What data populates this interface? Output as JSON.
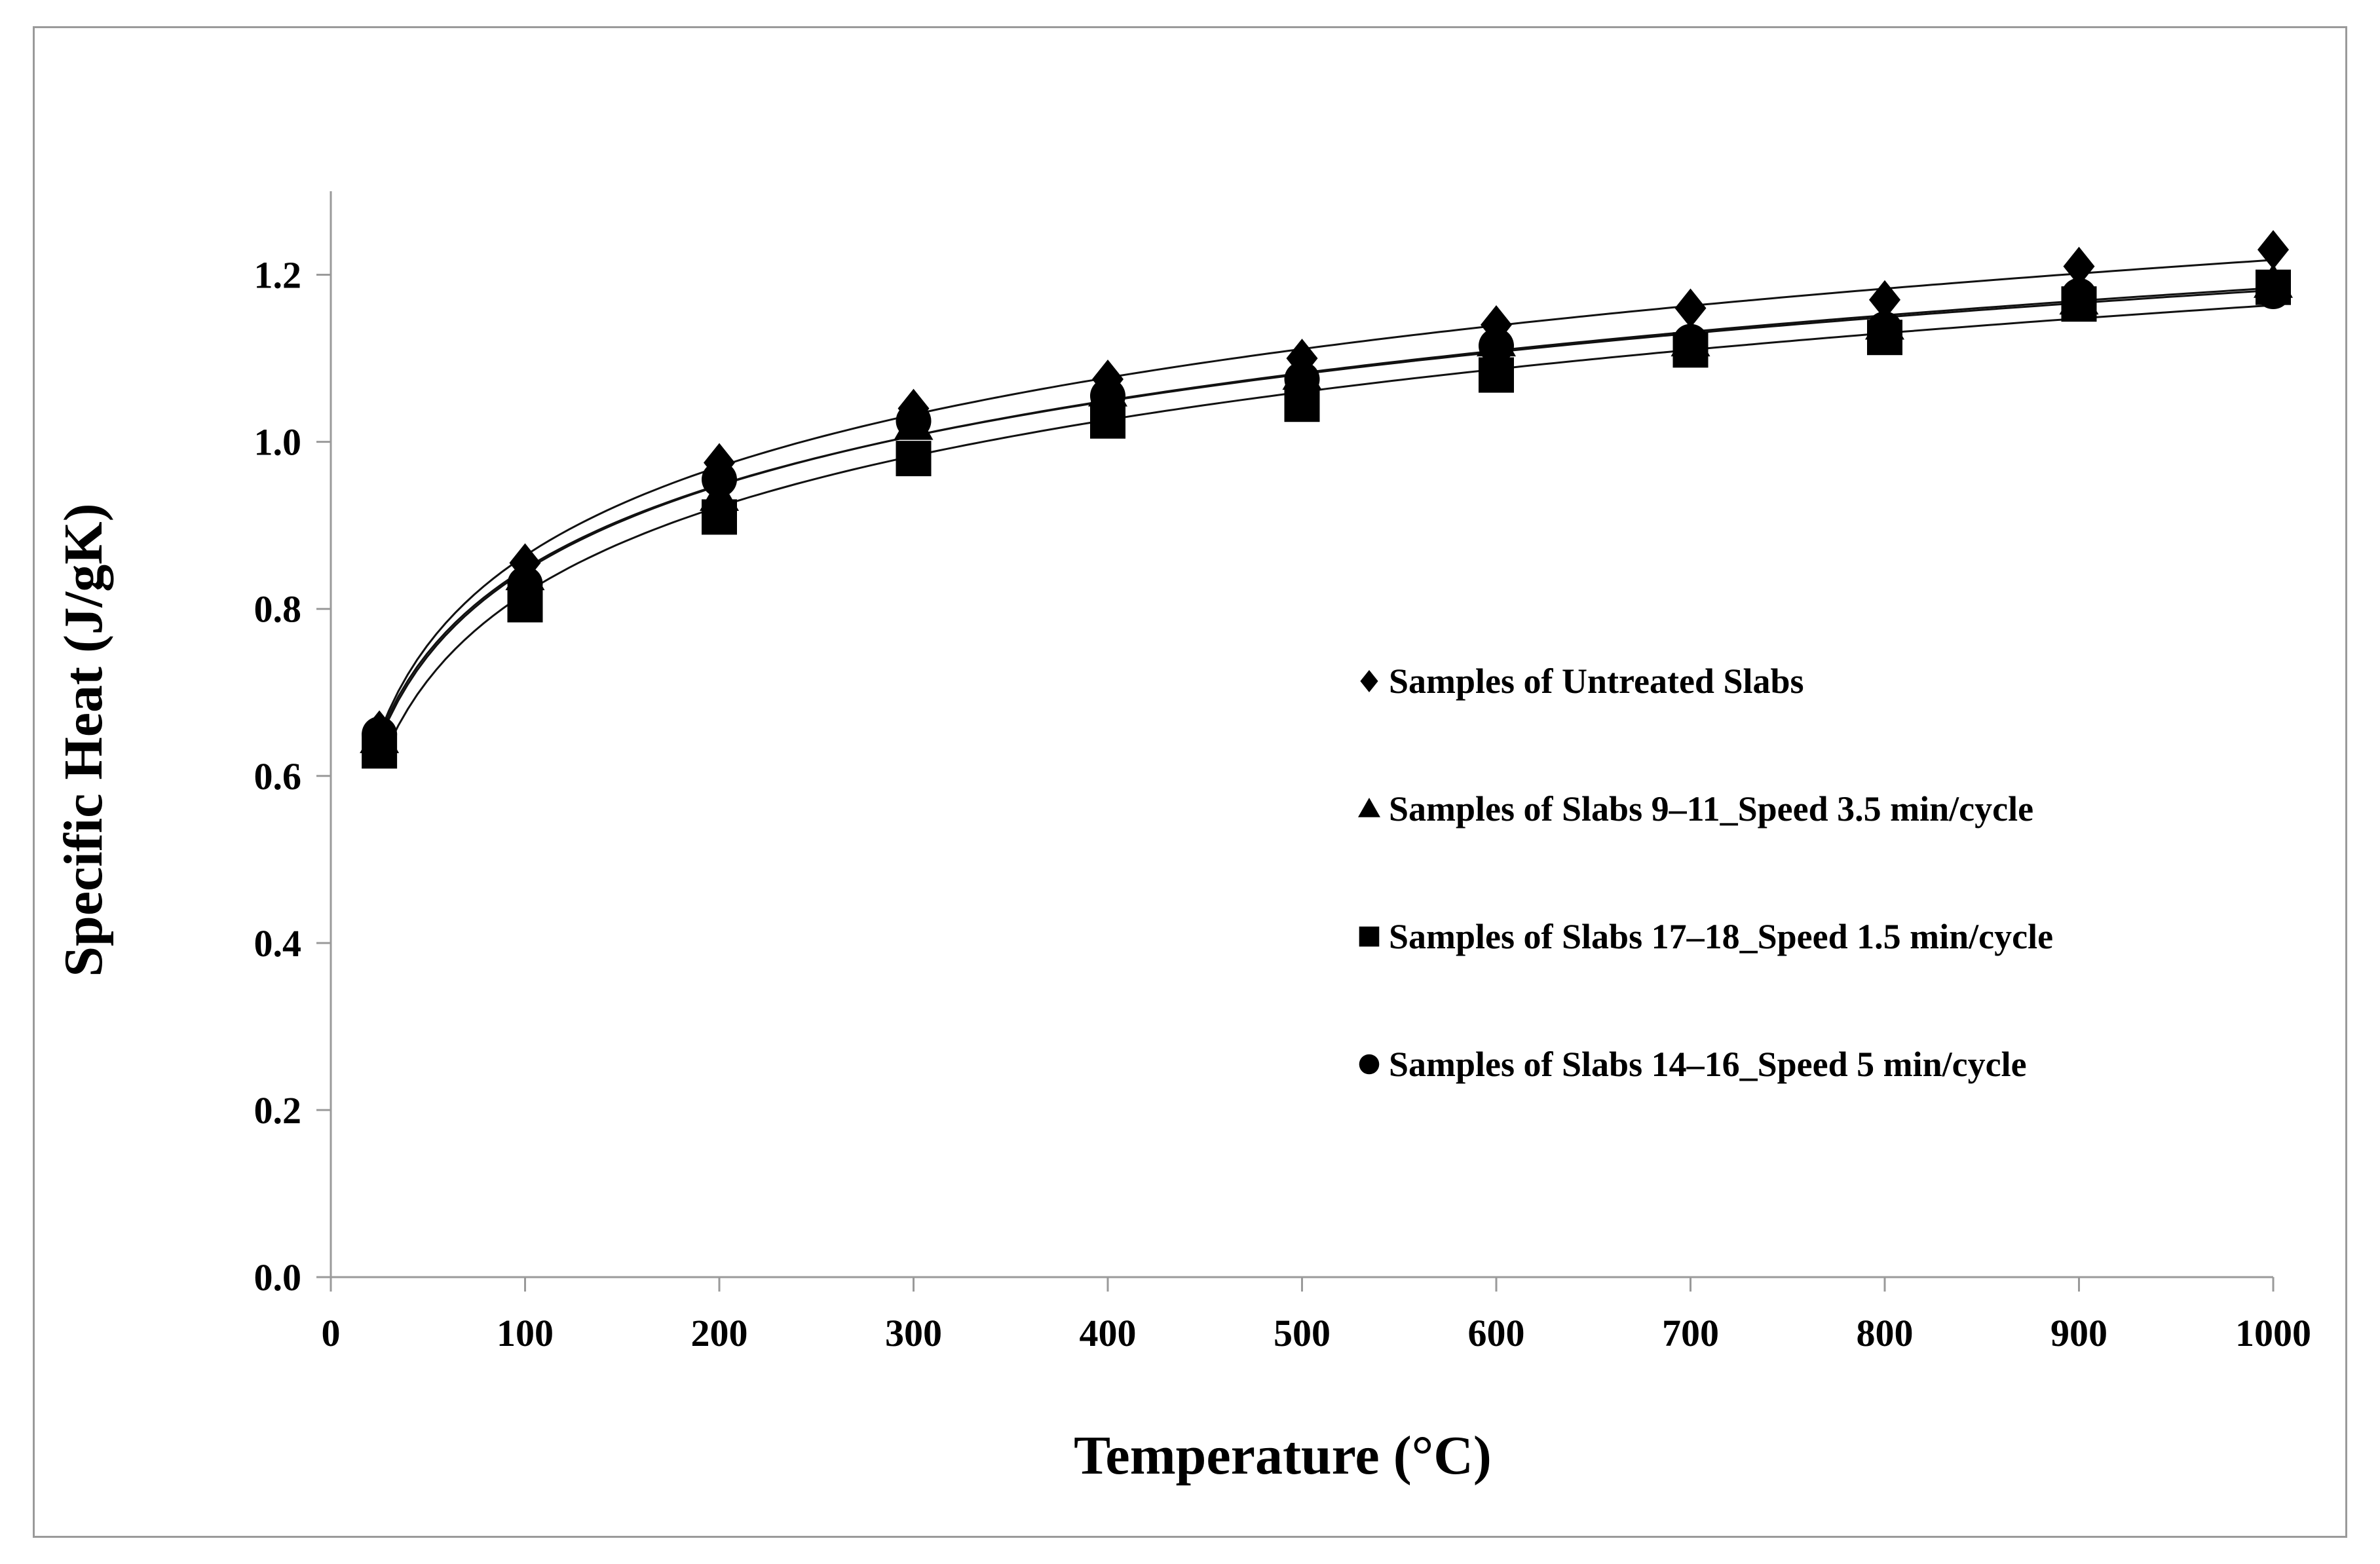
{
  "chart_data": {
    "type": "scatter",
    "title": "",
    "xlabel": "Temperature (°C)",
    "ylabel": "Specific Heat  (J/gK)",
    "xlim": [
      0,
      1000
    ],
    "ylim": [
      0,
      1.3
    ],
    "xticks": [
      "0",
      "100",
      "200",
      "300",
      "400",
      "500",
      "600",
      "700",
      "800",
      "900",
      "1000"
    ],
    "yticks": [
      "0.0",
      "0.2",
      "0.4",
      "0.6",
      "0.8",
      "1.0",
      "1.2"
    ],
    "grid": false,
    "legend_position": "right-center",
    "trendline": "logarithmic",
    "x": [
      25,
      100,
      200,
      300,
      400,
      500,
      600,
      700,
      800,
      900,
      1000
    ],
    "series": [
      {
        "name": "Samples of Untreated Slabs",
        "marker": "diamond",
        "values": [
          0.655,
          0.855,
          0.975,
          1.04,
          1.075,
          1.1,
          1.14,
          1.16,
          1.17,
          1.21,
          1.23
        ]
      },
      {
        "name": "Samples of Slabs 9–11_Speed 3.5 min/cycle",
        "marker": "triangle",
        "values": [
          0.645,
          0.84,
          0.935,
          1.02,
          1.06,
          1.08,
          1.12,
          1.12,
          1.14,
          1.17,
          1.19
        ]
      },
      {
        "name": "Samples of Slabs 17–18_Speed 1.5 min/cycle",
        "marker": "square",
        "values": [
          0.63,
          0.805,
          0.91,
          0.98,
          1.025,
          1.045,
          1.08,
          1.11,
          1.125,
          1.165,
          1.185
        ]
      },
      {
        "name": "Samples of Slabs 14–16_Speed 5 min/cycle",
        "marker": "circle",
        "values": [
          0.65,
          0.83,
          0.955,
          1.025,
          1.055,
          1.075,
          1.115,
          1.12,
          1.135,
          1.175,
          1.18
        ]
      }
    ]
  }
}
